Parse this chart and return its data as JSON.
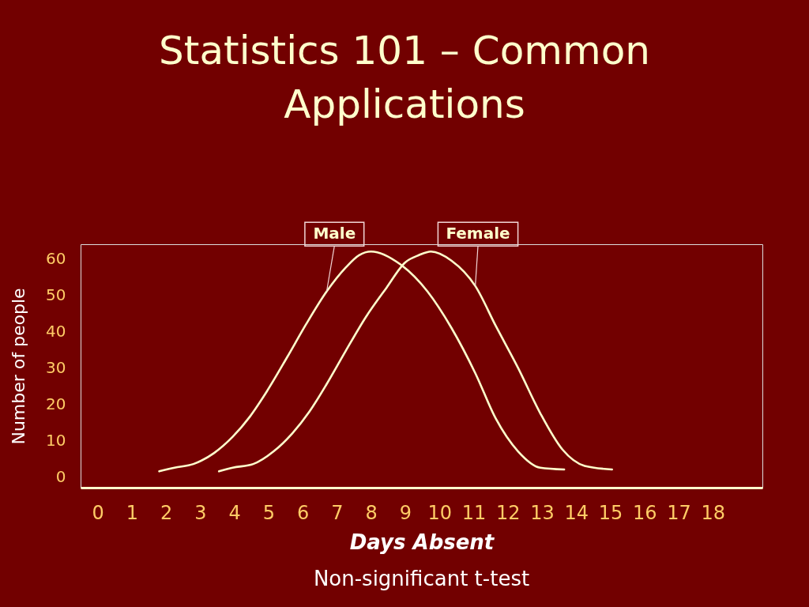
{
  "chart_data": {
    "type": "line",
    "title": "Statistics 101 – Common Applications",
    "xlabel": "Days Absent",
    "ylabel": "Number of people",
    "annotations": [
      "Non-significant t-test"
    ],
    "series": [
      {
        "name": "Male",
        "color": "#ffffcc",
        "x": [
          1.8,
          2.25,
          2.8,
          3.4,
          3.95,
          4.45,
          4.95,
          5.55,
          6.1,
          6.7,
          7.25,
          7.65,
          8.0,
          8.85,
          9.65,
          10.35,
          11.05,
          11.65,
          12.3,
          12.95,
          13.65
        ],
        "values": [
          1.5,
          2.5,
          3.5,
          6.5,
          11,
          16.5,
          23.5,
          33,
          42,
          51,
          57.5,
          61,
          62,
          58.5,
          51,
          41,
          28.5,
          16,
          7,
          2.5,
          2
        ]
      },
      {
        "name": "Female",
        "color": "#ffffcc",
        "x": [
          3.55,
          3.95,
          4.55,
          5.15,
          5.7,
          6.2,
          6.7,
          7.25,
          7.85,
          8.45,
          9.0,
          9.4,
          9.75,
          10.35,
          11.05,
          11.65,
          12.3,
          12.95,
          13.6,
          14.25,
          15.05
        ],
        "values": [
          1.5,
          2.5,
          3.5,
          7,
          12,
          18,
          25.5,
          34.5,
          44,
          52,
          59,
          61,
          62,
          59.5,
          52.5,
          41.5,
          30,
          17.5,
          7.5,
          3,
          2
        ]
      }
    ],
    "xlim": [
      -0.5,
      19.45
    ],
    "ylim": [
      -3,
      64
    ],
    "xticks": [
      0,
      1,
      2,
      3,
      4,
      5,
      6,
      7,
      8,
      9,
      10,
      11,
      12,
      13,
      14,
      15,
      16,
      17,
      18
    ],
    "yticks": [
      0,
      10,
      20,
      30,
      40,
      50,
      60
    ]
  }
}
